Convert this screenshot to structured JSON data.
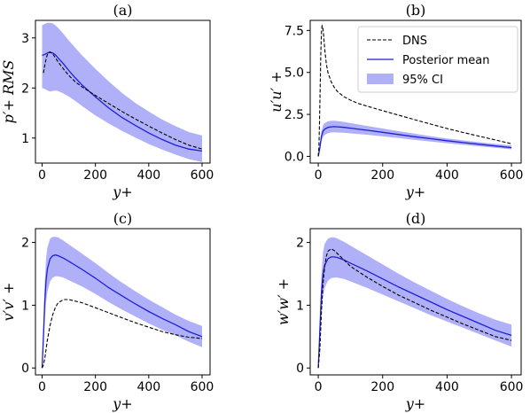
{
  "colors": {
    "dns": "#000000",
    "mean": "#1f1fd6",
    "ci": "#b0b0f8"
  },
  "legend": {
    "dns_label": "DNS",
    "mean_label": "Posterior mean",
    "ci_label": "95% CI"
  },
  "chart_data": [
    {
      "type": "line",
      "panel_title": "(a)",
      "xlabel": "y+",
      "ylabel": "p′+ RMS",
      "xlim": [
        -25,
        630
      ],
      "ylim": [
        0.5,
        3.35
      ],
      "xticks": [
        0,
        200,
        400,
        600
      ],
      "yticks": [
        1,
        2,
        3
      ],
      "series": [
        {
          "name": "DNS",
          "style": "dashed",
          "x": [
            5,
            10,
            15,
            20,
            25,
            30,
            40,
            50,
            60,
            80,
            100,
            125,
            150,
            200,
            250,
            300,
            350,
            400,
            450,
            500,
            550,
            600
          ],
          "y": [
            2.3,
            2.45,
            2.58,
            2.67,
            2.71,
            2.72,
            2.68,
            2.6,
            2.52,
            2.38,
            2.25,
            2.12,
            2.02,
            1.85,
            1.69,
            1.53,
            1.38,
            1.24,
            1.1,
            0.97,
            0.86,
            0.78
          ]
        },
        {
          "name": "Posterior mean",
          "style": "solid",
          "x": [
            0,
            10,
            20,
            30,
            40,
            50,
            60,
            80,
            100,
            125,
            150,
            200,
            250,
            300,
            350,
            400,
            450,
            500,
            550,
            600
          ],
          "y": [
            2.65,
            2.67,
            2.7,
            2.71,
            2.7,
            2.66,
            2.6,
            2.48,
            2.35,
            2.2,
            2.06,
            1.82,
            1.6,
            1.41,
            1.25,
            1.1,
            0.97,
            0.86,
            0.78,
            0.74
          ]
        },
        {
          "name": "95% CI",
          "style": "band",
          "x": [
            0,
            10,
            20,
            30,
            40,
            50,
            60,
            80,
            100,
            125,
            150,
            200,
            250,
            300,
            350,
            400,
            450,
            500,
            550,
            600
          ],
          "upper": [
            3.25,
            3.28,
            3.3,
            3.3,
            3.29,
            3.25,
            3.2,
            3.08,
            2.95,
            2.8,
            2.65,
            2.38,
            2.13,
            1.9,
            1.7,
            1.53,
            1.37,
            1.24,
            1.12,
            1.05
          ],
          "lower": [
            2.0,
            1.98,
            1.95,
            1.93,
            1.94,
            1.95,
            1.94,
            1.89,
            1.83,
            1.74,
            1.64,
            1.45,
            1.29,
            1.14,
            1.01,
            0.88,
            0.77,
            0.67,
            0.58,
            0.52
          ]
        }
      ]
    },
    {
      "type": "line",
      "panel_title": "(b)",
      "xlabel": "y+",
      "ylabel": "u′u′ +",
      "xlim": [
        -25,
        630
      ],
      "ylim": [
        -0.4,
        8.1
      ],
      "xticks": [
        0,
        200,
        400,
        600
      ],
      "yticks": [
        0.0,
        2.5,
        5.0,
        7.5
      ],
      "ytick_labels": [
        "0.0",
        "2.5",
        "5.0",
        "7.5"
      ],
      "legend_position": "top-right",
      "series": [
        {
          "name": "DNS",
          "style": "dashed",
          "x": [
            0,
            2,
            4,
            6,
            8,
            10,
            12,
            14,
            16,
            18,
            20,
            25,
            30,
            40,
            50,
            60,
            80,
            100,
            125,
            150,
            200,
            250,
            300,
            350,
            400,
            450,
            500,
            550,
            600
          ],
          "y": [
            0,
            0.5,
            2.0,
            4.2,
            6.2,
            7.4,
            7.78,
            7.7,
            7.35,
            6.9,
            6.4,
            5.5,
            5.0,
            4.45,
            4.1,
            3.85,
            3.55,
            3.35,
            3.15,
            3.0,
            2.72,
            2.45,
            2.18,
            1.92,
            1.66,
            1.42,
            1.2,
            0.98,
            0.75
          ]
        },
        {
          "name": "Posterior mean",
          "style": "solid",
          "x": [
            0,
            5,
            10,
            15,
            20,
            30,
            40,
            50,
            60,
            80,
            100,
            150,
            200,
            250,
            300,
            350,
            400,
            450,
            500,
            550,
            600
          ],
          "y": [
            0,
            0.5,
            1.2,
            1.5,
            1.62,
            1.72,
            1.76,
            1.77,
            1.76,
            1.73,
            1.68,
            1.56,
            1.43,
            1.3,
            1.17,
            1.05,
            0.93,
            0.82,
            0.72,
            0.62,
            0.52
          ]
        },
        {
          "name": "95% CI",
          "style": "band",
          "x": [
            0,
            5,
            10,
            15,
            20,
            30,
            40,
            50,
            60,
            80,
            100,
            150,
            200,
            250,
            300,
            350,
            400,
            450,
            500,
            550,
            600
          ],
          "upper": [
            0,
            0.7,
            1.5,
            1.85,
            1.98,
            2.08,
            2.12,
            2.12,
            2.1,
            2.05,
            1.98,
            1.82,
            1.66,
            1.5,
            1.35,
            1.2,
            1.07,
            0.95,
            0.84,
            0.74,
            0.65
          ],
          "lower": [
            0,
            0.35,
            0.9,
            1.15,
            1.28,
            1.38,
            1.42,
            1.43,
            1.42,
            1.4,
            1.37,
            1.29,
            1.19,
            1.09,
            0.98,
            0.88,
            0.78,
            0.69,
            0.6,
            0.51,
            0.42
          ]
        }
      ]
    },
    {
      "type": "line",
      "panel_title": "(c)",
      "xlabel": "y+",
      "ylabel": "v′v′ +",
      "xlim": [
        -25,
        630
      ],
      "ylim": [
        -0.11,
        2.22
      ],
      "xticks": [
        0,
        200,
        400,
        600
      ],
      "yticks": [
        0,
        1,
        2
      ],
      "series": [
        {
          "name": "DNS",
          "style": "dashed",
          "x": [
            0,
            5,
            10,
            15,
            20,
            30,
            40,
            50,
            60,
            80,
            100,
            150,
            200,
            250,
            300,
            350,
            400,
            450,
            500,
            550,
            600
          ],
          "y": [
            0,
            0.05,
            0.15,
            0.3,
            0.45,
            0.68,
            0.85,
            0.97,
            1.04,
            1.09,
            1.09,
            1.04,
            0.96,
            0.88,
            0.8,
            0.72,
            0.65,
            0.58,
            0.53,
            0.49,
            0.47
          ]
        },
        {
          "name": "Posterior mean",
          "style": "solid",
          "x": [
            0,
            5,
            10,
            15,
            20,
            30,
            40,
            50,
            60,
            80,
            100,
            150,
            200,
            250,
            300,
            350,
            400,
            450,
            500,
            550,
            600
          ],
          "y": [
            0,
            0.5,
            1.05,
            1.4,
            1.58,
            1.74,
            1.79,
            1.8,
            1.79,
            1.75,
            1.7,
            1.57,
            1.43,
            1.28,
            1.15,
            1.02,
            0.9,
            0.79,
            0.69,
            0.58,
            0.5
          ]
        },
        {
          "name": "95% CI",
          "style": "band",
          "x": [
            0,
            5,
            10,
            15,
            20,
            30,
            40,
            50,
            60,
            80,
            100,
            150,
            200,
            250,
            300,
            350,
            400,
            450,
            500,
            550,
            600
          ],
          "upper": [
            0,
            0.7,
            1.35,
            1.75,
            1.92,
            2.06,
            2.09,
            2.09,
            2.08,
            2.03,
            1.97,
            1.82,
            1.67,
            1.51,
            1.36,
            1.22,
            1.09,
            0.97,
            0.85,
            0.75,
            0.67
          ],
          "lower": [
            0,
            0.3,
            0.75,
            1.05,
            1.22,
            1.38,
            1.44,
            1.46,
            1.46,
            1.44,
            1.4,
            1.3,
            1.18,
            1.05,
            0.93,
            0.82,
            0.71,
            0.61,
            0.52,
            0.42,
            0.33
          ]
        }
      ]
    },
    {
      "type": "line",
      "panel_title": "(d)",
      "xlabel": "y+",
      "ylabel": "w′w′ +",
      "xlim": [
        -25,
        630
      ],
      "ylim": [
        -0.11,
        2.22
      ],
      "xticks": [
        0,
        200,
        400,
        600
      ],
      "yticks": [
        0,
        1,
        2
      ],
      "series": [
        {
          "name": "DNS",
          "style": "dashed",
          "x": [
            0,
            5,
            10,
            15,
            20,
            25,
            30,
            40,
            50,
            60,
            80,
            100,
            150,
            200,
            250,
            300,
            350,
            400,
            450,
            500,
            550,
            600
          ],
          "y": [
            0,
            0.3,
            0.9,
            1.35,
            1.62,
            1.78,
            1.86,
            1.9,
            1.87,
            1.82,
            1.72,
            1.62,
            1.45,
            1.3,
            1.16,
            1.04,
            0.92,
            0.81,
            0.7,
            0.6,
            0.5,
            0.44
          ]
        },
        {
          "name": "Posterior mean",
          "style": "solid",
          "x": [
            0,
            5,
            10,
            15,
            20,
            30,
            40,
            50,
            60,
            80,
            100,
            150,
            200,
            250,
            300,
            350,
            400,
            450,
            500,
            550,
            600
          ],
          "y": [
            0,
            0.6,
            1.2,
            1.5,
            1.64,
            1.74,
            1.77,
            1.77,
            1.76,
            1.72,
            1.67,
            1.55,
            1.42,
            1.29,
            1.17,
            1.05,
            0.93,
            0.82,
            0.71,
            0.6,
            0.52
          ]
        },
        {
          "name": "95% CI",
          "style": "band",
          "x": [
            0,
            5,
            10,
            15,
            20,
            30,
            40,
            50,
            60,
            80,
            100,
            150,
            200,
            250,
            300,
            350,
            400,
            450,
            500,
            550,
            600
          ],
          "upper": [
            0,
            0.8,
            1.5,
            1.85,
            1.98,
            2.06,
            2.08,
            2.08,
            2.06,
            2.01,
            1.95,
            1.8,
            1.65,
            1.5,
            1.36,
            1.23,
            1.1,
            0.98,
            0.87,
            0.77,
            0.69
          ],
          "lower": [
            0,
            0.4,
            0.9,
            1.15,
            1.28,
            1.39,
            1.43,
            1.44,
            1.44,
            1.42,
            1.38,
            1.28,
            1.17,
            1.06,
            0.95,
            0.84,
            0.74,
            0.64,
            0.54,
            0.44,
            0.34
          ]
        }
      ]
    }
  ]
}
